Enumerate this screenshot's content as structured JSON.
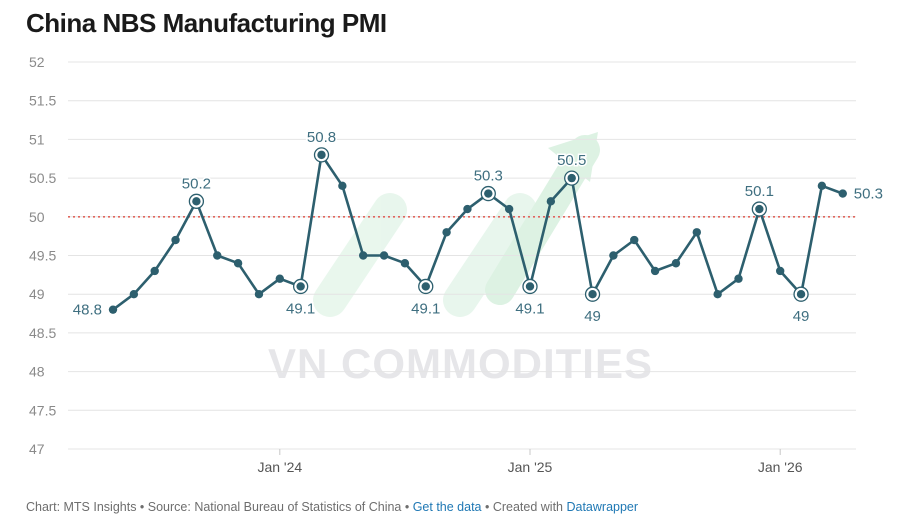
{
  "title": "China NBS Manufacturing PMI",
  "watermark": "VN COMMODITIES",
  "footer": {
    "source_text": "Chart: MTS Insights • Source: National Bureau of Statistics of China • ",
    "get_data_label": "Get the data",
    "created_text": " • Created with ",
    "datawrapper_label": "Datawrapper"
  },
  "colors": {
    "line": "#2d5f6e",
    "grid": "#e4e4e4",
    "reference_line": "#e0675e",
    "label": "#3f6f80",
    "axis_text": "#8a8a8a"
  },
  "chart_data": {
    "type": "line",
    "title": "China NBS Manufacturing PMI",
    "ylim": [
      47,
      52
    ],
    "yticks": [
      52,
      51.5,
      51,
      50.5,
      50,
      49.5,
      49,
      48.5,
      48,
      47.5,
      47
    ],
    "reference_value": 50,
    "x_tick_labels": [
      {
        "label": "Jan '24",
        "index": 8
      },
      {
        "label": "Jan '25",
        "index": 20
      },
      {
        "label": "Jan '26",
        "index": 32
      }
    ],
    "values": [
      48.8,
      49.0,
      49.3,
      49.7,
      50.2,
      49.5,
      49.4,
      49.0,
      49.2,
      49.1,
      50.8,
      50.4,
      49.5,
      49.5,
      49.4,
      49.1,
      49.8,
      50.1,
      50.3,
      50.1,
      49.1,
      50.2,
      50.5,
      49.0,
      49.5,
      49.7,
      49.3,
      49.4,
      49.8,
      49.0,
      49.2,
      50.1,
      49.3,
      49.0,
      50.4,
      50.3
    ],
    "annotations": [
      {
        "index": 0,
        "text": "48.8",
        "pos": "left",
        "circle": false
      },
      {
        "index": 4,
        "text": "50.2",
        "pos": "above",
        "circle": true
      },
      {
        "index": 9,
        "text": "49.1",
        "pos": "below",
        "circle": true
      },
      {
        "index": 10,
        "text": "50.8",
        "pos": "above",
        "circle": true
      },
      {
        "index": 15,
        "text": "49.1",
        "pos": "below",
        "circle": true
      },
      {
        "index": 18,
        "text": "50.3",
        "pos": "above",
        "circle": true
      },
      {
        "index": 20,
        "text": "49.1",
        "pos": "below",
        "circle": true
      },
      {
        "index": 22,
        "text": "50.5",
        "pos": "above",
        "circle": true
      },
      {
        "index": 23,
        "text": "49",
        "pos": "below",
        "circle": true
      },
      {
        "index": 31,
        "text": "50.1",
        "pos": "above",
        "circle": true
      },
      {
        "index": 33,
        "text": "49",
        "pos": "below",
        "circle": true
      },
      {
        "index": 35,
        "text": "50.3",
        "pos": "right",
        "circle": false
      }
    ]
  }
}
